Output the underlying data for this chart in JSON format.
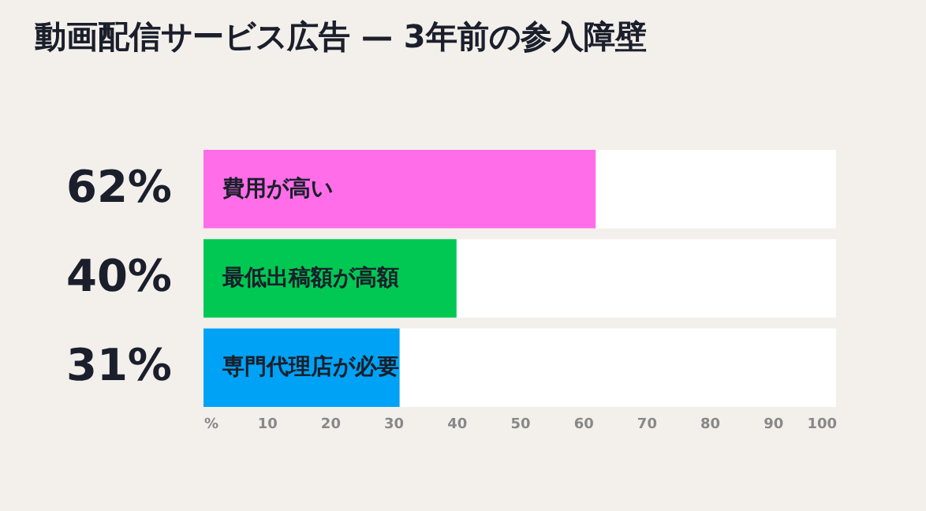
{
  "chart_data": {
    "type": "bar",
    "orientation": "horizontal",
    "title": "動画配信サービス広告 — 3年前の参入障壁",
    "categories": [
      "費用が高い",
      "最低出稿額が高額",
      "専門代理店が必要"
    ],
    "values": [
      62,
      40,
      31
    ],
    "colors": [
      "#ff6ee8",
      "#00c853",
      "#00a2f5"
    ],
    "value_labels": [
      "62%",
      "40%",
      "31%"
    ],
    "xlim": [
      0,
      100
    ],
    "xticks": [
      {
        "value": 0,
        "label": "%"
      },
      10,
      20,
      30,
      40,
      50,
      60,
      70,
      80,
      90,
      100
    ],
    "grid": false,
    "tick_labels": "x"
  }
}
